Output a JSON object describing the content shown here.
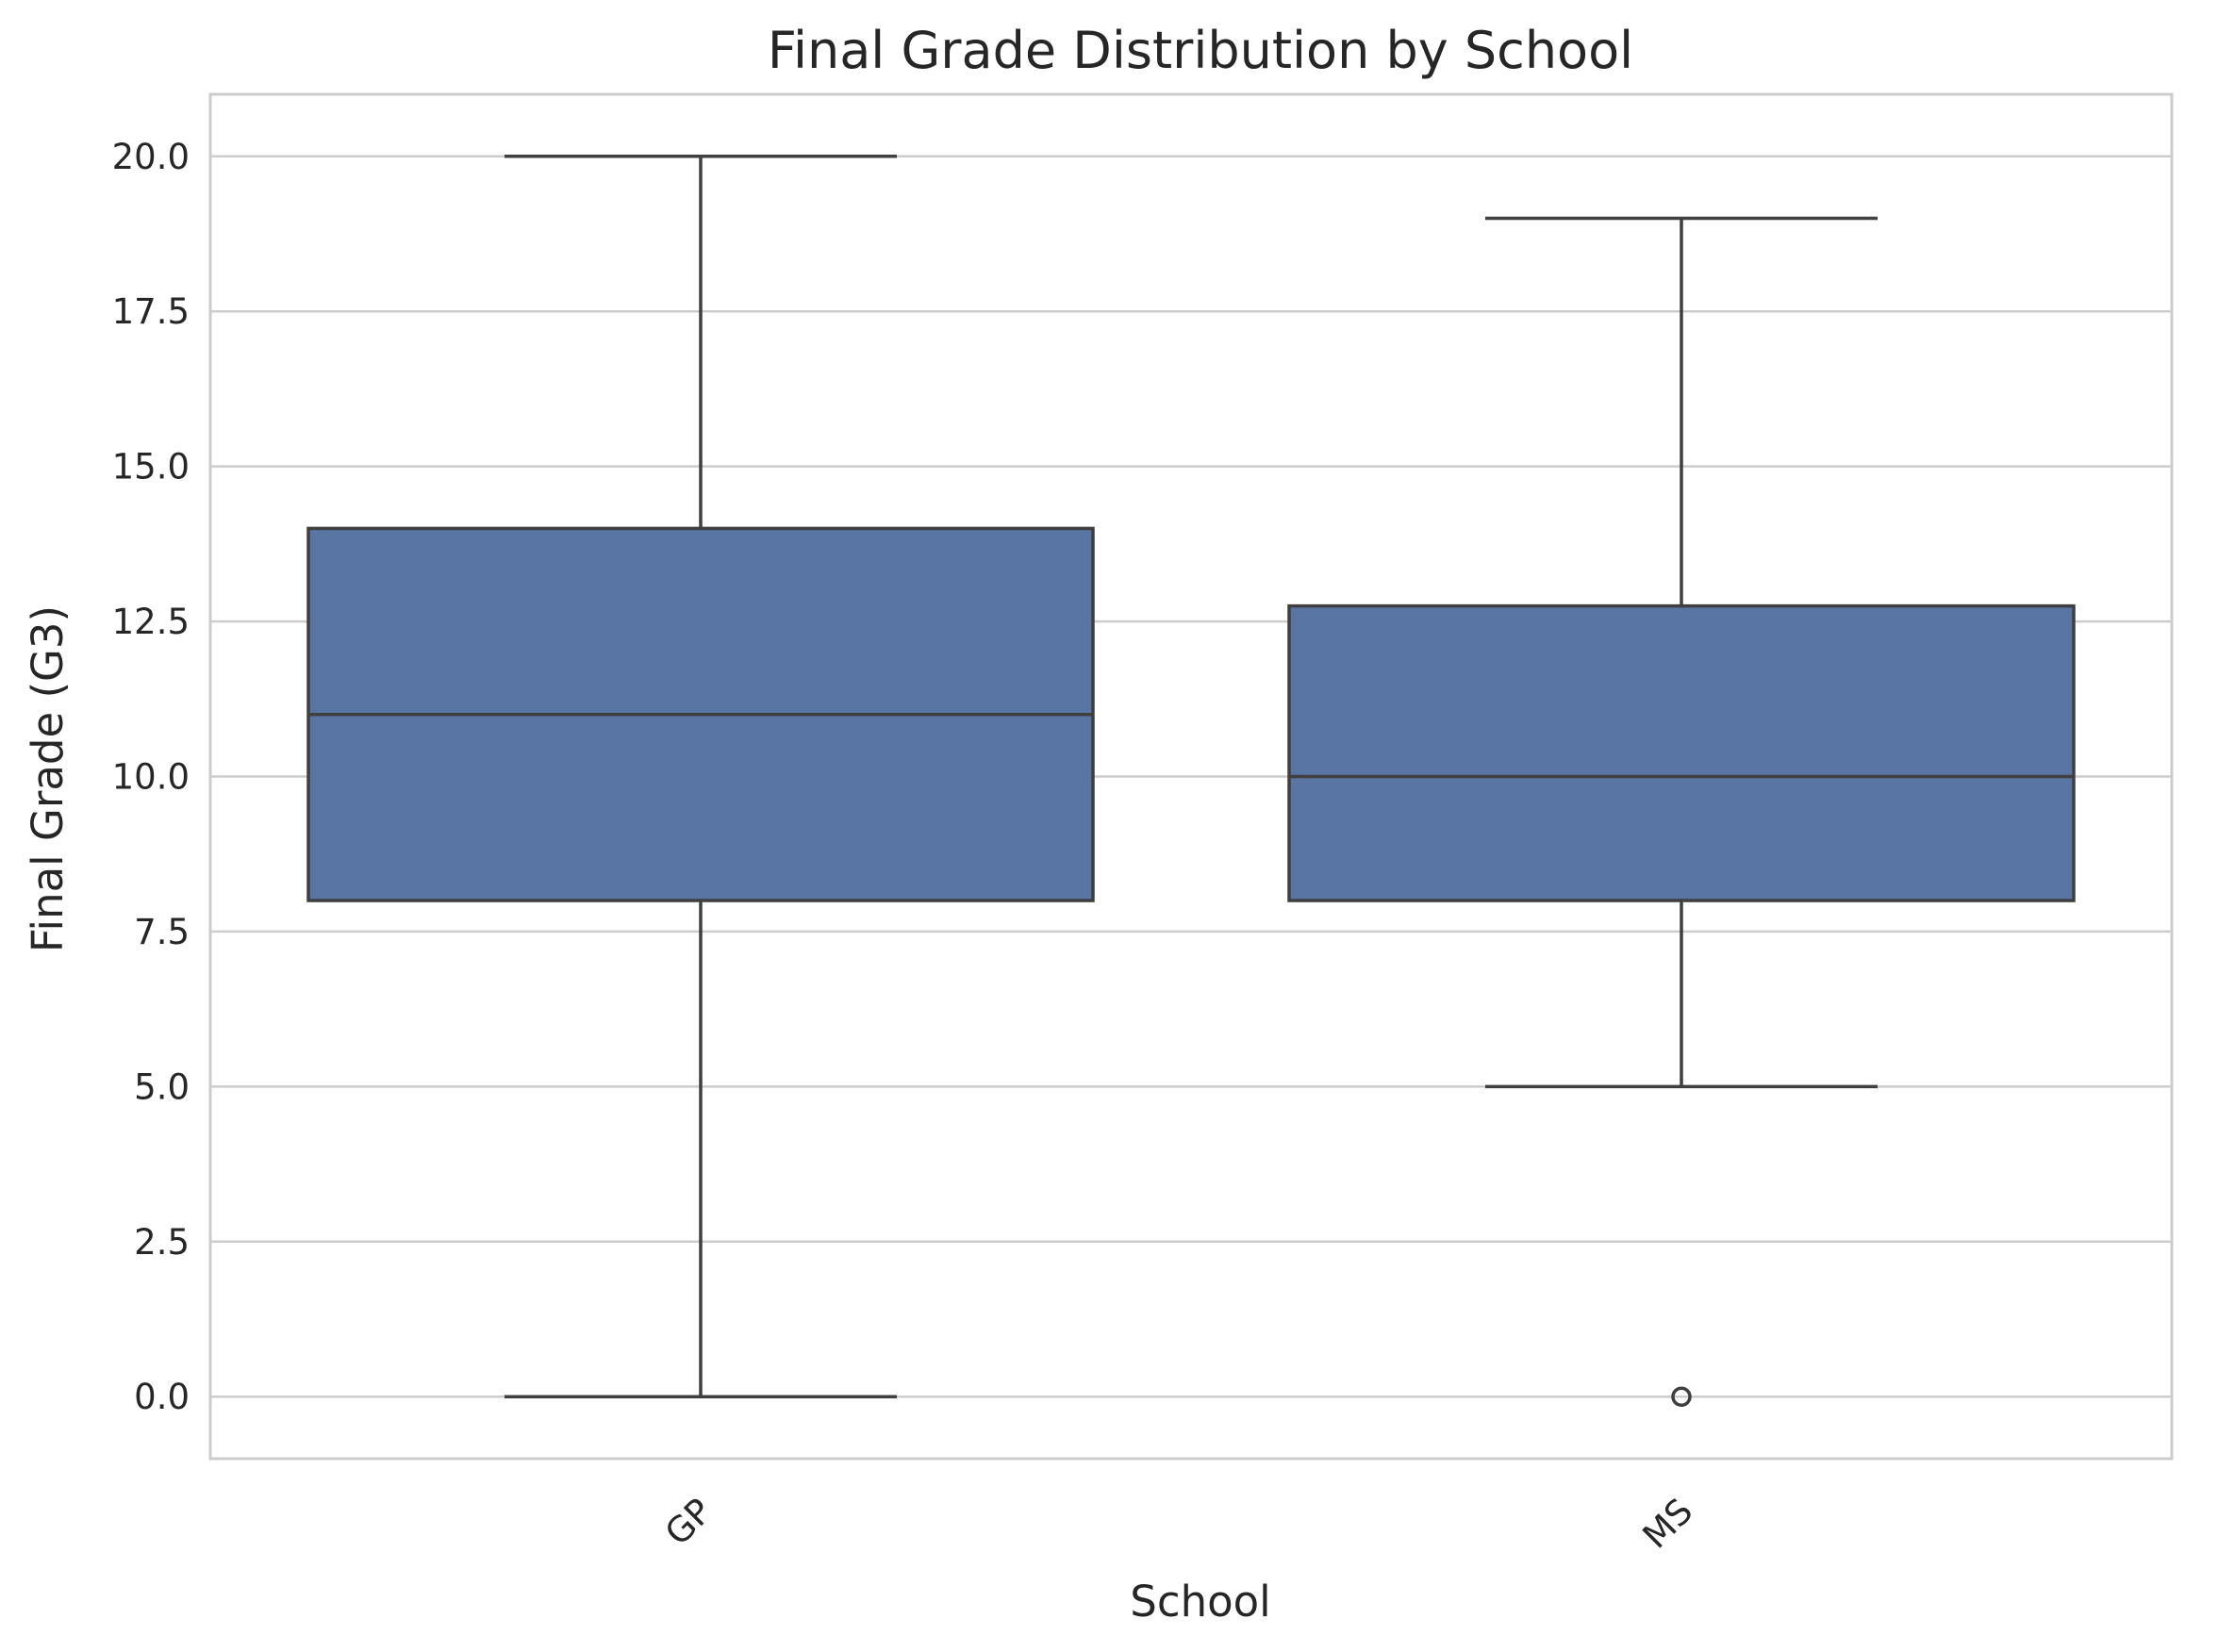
{
  "chart_data": {
    "type": "box",
    "title": "Final Grade Distribution by School",
    "xlabel": "School",
    "ylabel": "Final Grade (G3)",
    "ylim": [
      -1,
      21
    ],
    "yticks": [
      "0.0",
      "2.5",
      "5.0",
      "7.5",
      "10.0",
      "12.5",
      "15.0",
      "17.5",
      "20.0"
    ],
    "ytick_values": [
      0,
      2.5,
      5,
      7.5,
      10,
      12.5,
      15,
      17.5,
      20
    ],
    "grid": true,
    "xtick_rotation": 45,
    "box_color": "#5975a4",
    "line_color": "#3f3f3f",
    "grid_color": "#cccccc",
    "categories": [
      "GP",
      "MS"
    ],
    "boxes": [
      {
        "category": "GP",
        "whisker_low": 0,
        "q1": 8,
        "median": 11,
        "q3": 14,
        "whisker_high": 20,
        "outliers": []
      },
      {
        "category": "MS",
        "whisker_low": 5,
        "q1": 8,
        "median": 10,
        "q3": 12.75,
        "whisker_high": 19,
        "outliers": [
          0
        ]
      }
    ]
  }
}
